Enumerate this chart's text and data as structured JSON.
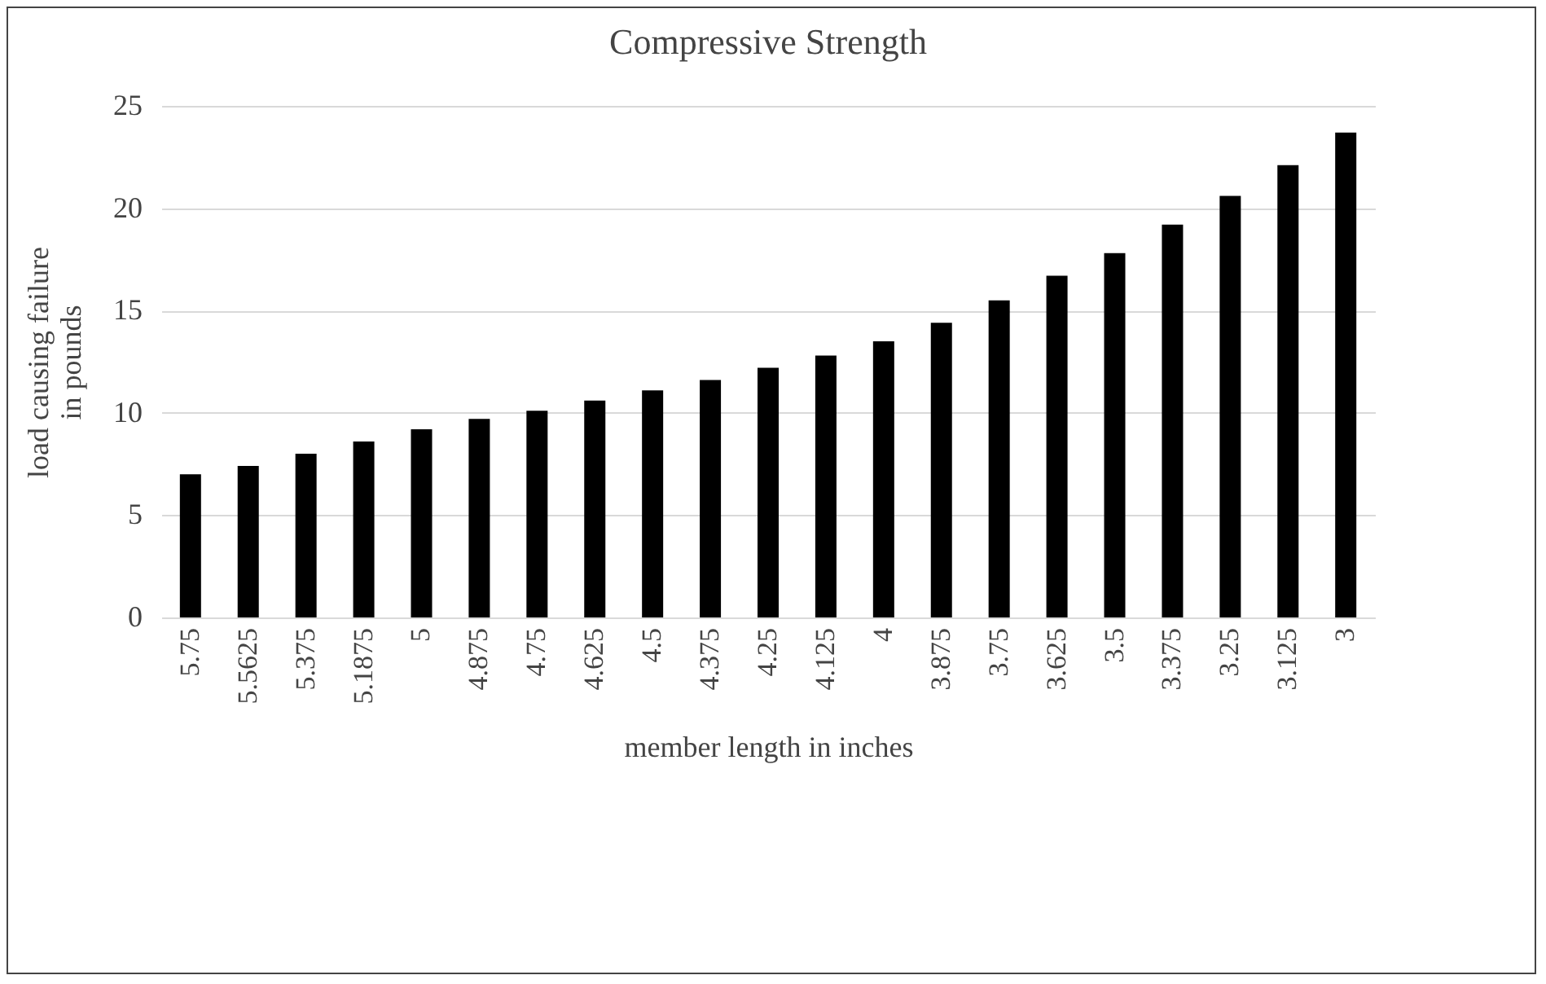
{
  "chart_data": {
    "type": "bar",
    "title": "Compressive Strength",
    "xlabel": "member length in inches",
    "ylabel": [
      "load causing failure",
      "in pounds"
    ],
    "categories": [
      "5.75",
      "5.5625",
      "5.375",
      "5.1875",
      "5",
      "4.875",
      "4.75",
      "4.625",
      "4.5",
      "4.375",
      "4.25",
      "4.125",
      "4",
      "3.875",
      "3.75",
      "3.625",
      "3.5",
      "3.375",
      "3.25",
      "3.125",
      "3"
    ],
    "values": [
      7.0,
      7.4,
      8.0,
      8.6,
      9.2,
      9.7,
      10.1,
      10.6,
      11.1,
      11.6,
      12.2,
      12.8,
      13.5,
      14.4,
      15.5,
      16.7,
      17.8,
      19.2,
      20.6,
      22.1,
      23.7
    ],
    "color": "#000000",
    "ylim": [
      0,
      25
    ],
    "yticks": [
      0,
      5,
      10,
      15,
      20,
      25
    ],
    "grid": "y"
  }
}
